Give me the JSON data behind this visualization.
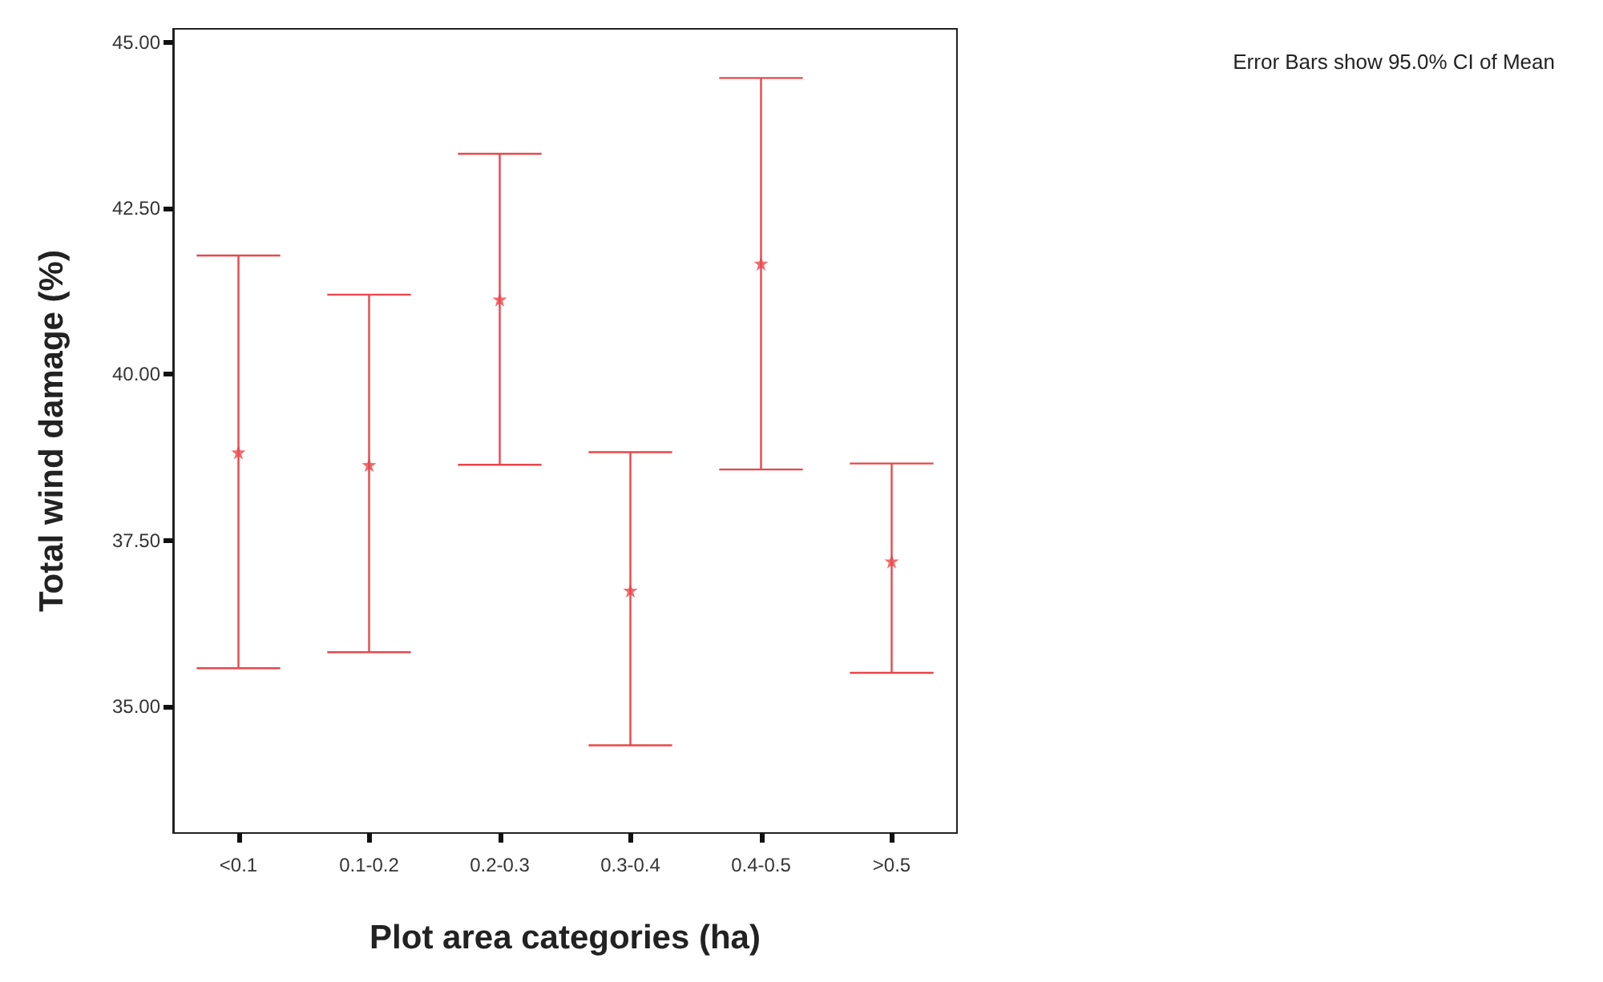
{
  "chart_data": {
    "type": "scatter",
    "xlabel": "Plot area categories (ha)",
    "ylabel": "Total wind damage (%)",
    "annotations": [
      "Error Bars show 95.0% CI of Mean"
    ],
    "categories": [
      "<0.1",
      "0.1-0.2",
      "0.2-0.3",
      "0.3-0.4",
      "0.4-0.5",
      ">0.5"
    ],
    "values": [
      38.83,
      38.64,
      41.13,
      36.75,
      41.67,
      37.19
    ],
    "errors": [
      [
        35.58,
        41.79
      ],
      [
        35.82,
        41.2
      ],
      [
        38.64,
        43.32
      ],
      [
        34.42,
        38.83
      ],
      [
        38.57,
        44.46
      ],
      [
        35.51,
        38.66
      ]
    ],
    "color": "#e8474b",
    "marker": "star",
    "grid": false,
    "ylim": [
      33.1,
      45.2
    ],
    "yticks": [
      {
        "value": 35,
        "label": "35.00"
      },
      {
        "value": 37.5,
        "label": "37.50"
      },
      {
        "value": 40,
        "label": "40.00"
      },
      {
        "value": 42.5,
        "label": "42.50"
      },
      {
        "value": 45,
        "label": "45.00"
      }
    ]
  }
}
